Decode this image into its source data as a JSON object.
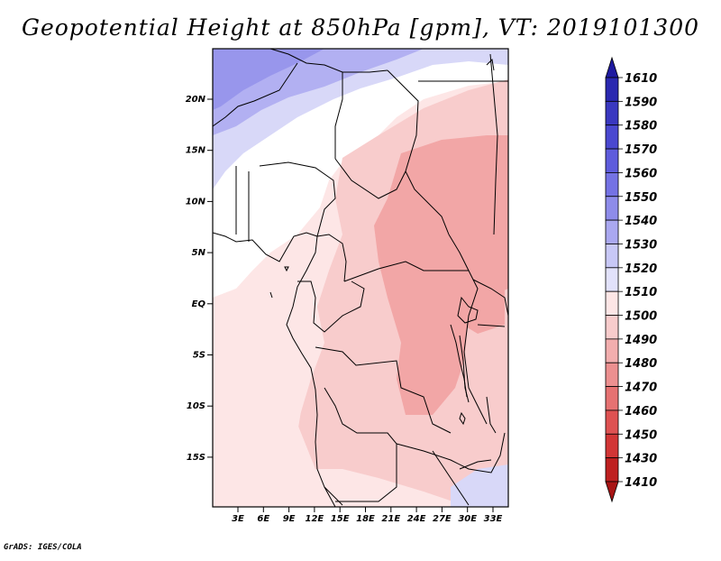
{
  "title": "Geopotential Height at 850hPa [gpm], VT: 2019101300",
  "footer": "GrADS: IGES/COLA",
  "map": {
    "lat_labels": [
      "20N",
      "15N",
      "10N",
      "5N",
      "EQ",
      "5S",
      "10S",
      "15S"
    ],
    "lon_labels": [
      "3E",
      "6E",
      "9E",
      "12E",
      "15E",
      "18E",
      "21E",
      "24E",
      "27E",
      "30E",
      "33E"
    ]
  },
  "colorbar": {
    "levels": [
      "1610",
      "1590",
      "1580",
      "1570",
      "1560",
      "1550",
      "1540",
      "1530",
      "1520",
      "1510",
      "1500",
      "1490",
      "1480",
      "1470",
      "1460",
      "1450",
      "1430",
      "1410"
    ],
    "colors": [
      "#1e1aa0",
      "#2a28b0",
      "#3a38c0",
      "#4a48d0",
      "#5e5cdc",
      "#7472e4",
      "#8e8cea",
      "#aaa8f0",
      "#c8c8f6",
      "#e2e2fb",
      "#fde6e6",
      "#f8cccc",
      "#f2aeae",
      "#ec9090",
      "#e67272",
      "#de5252",
      "#d23636",
      "#be2020",
      "#a81414"
    ]
  }
}
